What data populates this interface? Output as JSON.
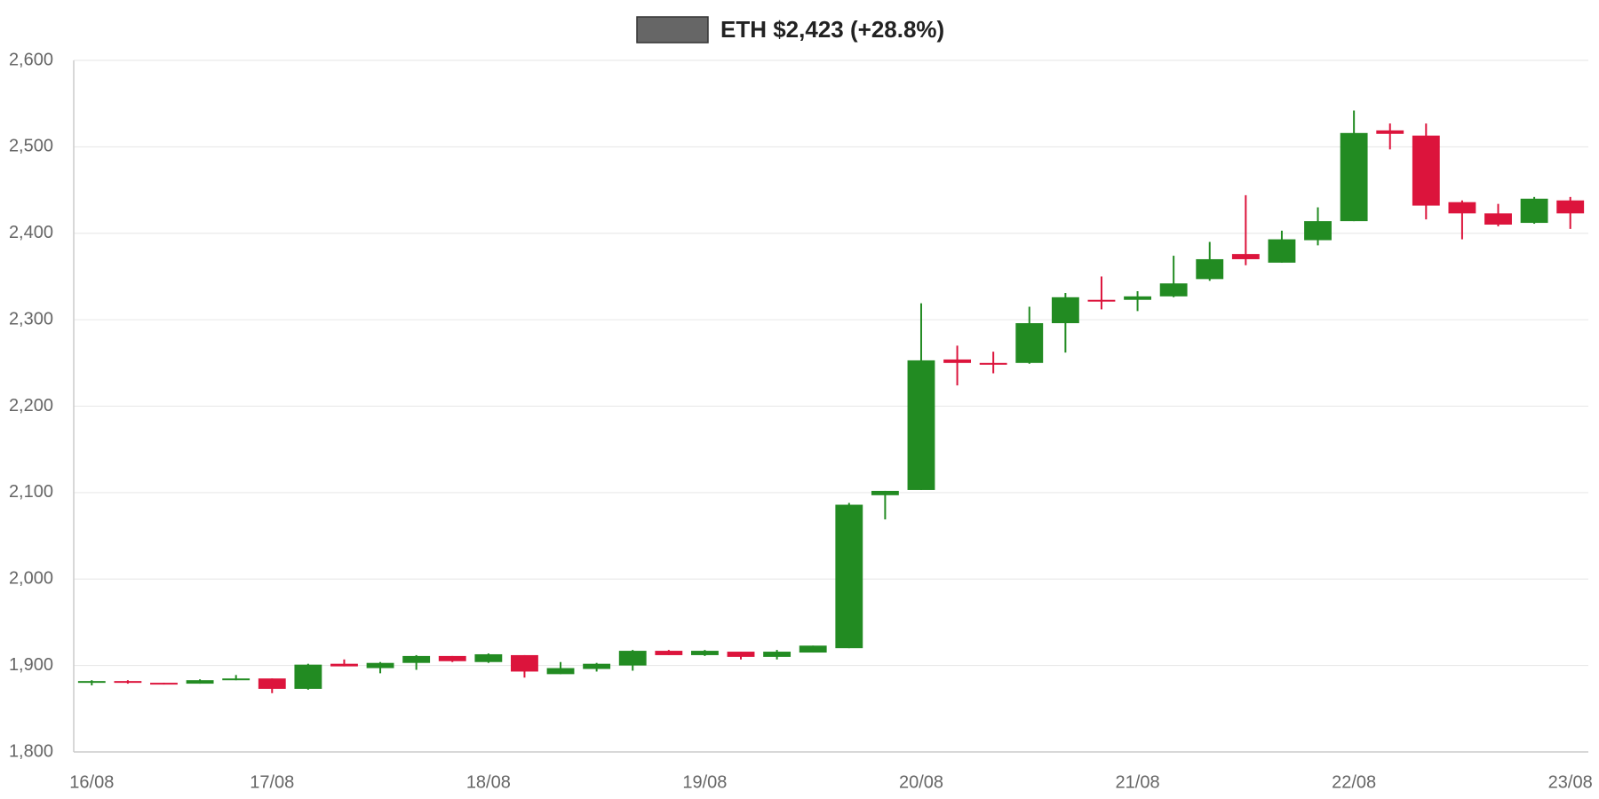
{
  "chart_data": {
    "type": "candlestick",
    "categories": [
      "16/08",
      null,
      null,
      null,
      null,
      "17/08",
      null,
      null,
      null,
      null,
      null,
      "18/08",
      null,
      null,
      null,
      null,
      null,
      "19/08",
      null,
      null,
      null,
      null,
      null,
      "20/08",
      null,
      null,
      null,
      null,
      null,
      "21/08",
      null,
      null,
      null,
      null,
      null,
      "22/08",
      null,
      null,
      null,
      null,
      null,
      "23/08"
    ],
    "series": [
      {
        "name": "ETH $2,423 (+28.8%)",
        "color": "#666666",
        "open": [
          1881,
          1882,
          1880,
          1879,
          1883,
          1885,
          1873,
          1902,
          1897,
          1903,
          1911,
          1904,
          1912,
          1890,
          1896,
          1900,
          1917,
          1912,
          1916,
          1910,
          1915,
          1920,
          2097,
          2103,
          2254,
          2250,
          2250,
          2296,
          2323,
          2323,
          2327,
          2347,
          2376,
          2366,
          2392,
          2414,
          2519,
          2513,
          2436,
          2423,
          2412,
          2438
        ],
        "high": [
          1883,
          1883,
          1880,
          1884,
          1889,
          1885,
          1902,
          1907,
          1904,
          1912,
          1911,
          1914,
          1912,
          1904,
          1903,
          1918,
          1918,
          1918,
          1916,
          1918,
          1923,
          2088,
          2102,
          2319,
          2270,
          2263,
          2315,
          2331,
          2350,
          2333,
          2374,
          2390,
          2444,
          2403,
          2430,
          2542,
          2527,
          2527,
          2438,
          2434,
          2442,
          2442
        ],
        "low": [
          1877,
          1879,
          1878,
          1879,
          1883,
          1868,
          1872,
          1899,
          1891,
          1895,
          1904,
          1903,
          1886,
          1890,
          1893,
          1894,
          1912,
          1911,
          1907,
          1907,
          1915,
          1920,
          2069,
          2103,
          2224,
          2238,
          2249,
          2262,
          2312,
          2310,
          2326,
          2345,
          2363,
          2366,
          2386,
          2414,
          2497,
          2416,
          2393,
          2408,
          2411,
          2405
        ],
        "close": [
          1882,
          1880,
          1879,
          1883,
          1885,
          1873,
          1901,
          1899,
          1903,
          1911,
          1905,
          1913,
          1893,
          1897,
          1902,
          1917,
          1912,
          1917,
          1910,
          1916,
          1923,
          2086,
          2102,
          2253,
          2250,
          2249,
          2296,
          2326,
          2322,
          2327,
          2342,
          2370,
          2370,
          2393,
          2414,
          2516,
          2515,
          2432,
          2423,
          2410,
          2440,
          2423
        ]
      }
    ],
    "up_color": "#228b22",
    "down_color": "#dc143c",
    "ylim": [
      1800,
      2600
    ],
    "yticks": [
      {
        "value": 1800,
        "label": "1,800"
      },
      {
        "value": 1900,
        "label": "1,900"
      },
      {
        "value": 2000,
        "label": "2,000"
      },
      {
        "value": 2100,
        "label": "2,100"
      },
      {
        "value": 2200,
        "label": "2,200"
      },
      {
        "value": 2300,
        "label": "2,300"
      },
      {
        "value": 2400,
        "label": "2,400"
      },
      {
        "value": 2500,
        "label": "2,500"
      },
      {
        "value": 2600,
        "label": "2,600"
      }
    ],
    "grid": true
  }
}
